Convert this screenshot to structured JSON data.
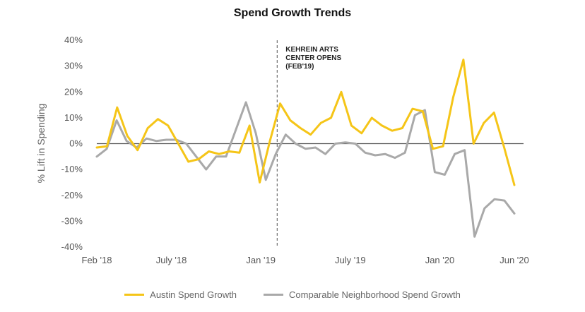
{
  "chart_data": {
    "type": "line",
    "title": "Spend Growth Trends",
    "ylabel": "% Lift in Spending",
    "xlabel": "",
    "ylim": [
      -40,
      40
    ],
    "y_ticks": [
      "40%",
      "30%",
      "20%",
      "10%",
      "0%",
      "-10%",
      "-20%",
      "-30%",
      "-40%"
    ],
    "x_tick_labels": [
      {
        "label": "Feb '18",
        "index": 0
      },
      {
        "label": "July '18",
        "index": 10
      },
      {
        "label": "Jan '19",
        "index": 22
      },
      {
        "label": "July '19",
        "index": 34
      },
      {
        "label": "Jan '20",
        "index": 46
      },
      {
        "label": "Jun '20",
        "index": 56
      }
    ],
    "annotation": {
      "lines": [
        "KEHREIN ARTS",
        "CENTER OPENS",
        "(FEB'19)"
      ],
      "at_index": 24
    },
    "grid": false,
    "legend_position": "bottom",
    "series": [
      {
        "name": "Austin Spend Growth",
        "color": "#F5C518",
        "values": [
          -1.5,
          -1,
          14,
          3,
          -2.5,
          6,
          9.5,
          7,
          0,
          -7,
          -6,
          -3,
          -4,
          -3,
          -3.5,
          7,
          -15,
          1,
          15.5,
          9,
          6,
          3.5,
          8,
          10,
          20,
          7,
          4,
          10,
          7,
          5,
          6,
          13.5,
          12.5,
          -2,
          -1,
          18,
          32.5,
          0,
          8,
          12,
          -1.5,
          -16
        ]
      },
      {
        "name": "Comparable Neighborhood Spend Growth",
        "color": "#A9A9A9",
        "values": [
          -5,
          -2,
          9,
          1,
          -1.5,
          2,
          1,
          1.5,
          1.5,
          0,
          -5,
          -10,
          -5,
          -5,
          5.5,
          16,
          4,
          -14,
          -4,
          3.5,
          0,
          -2,
          -1.5,
          -4,
          0,
          0.5,
          0,
          -3.5,
          -4.5,
          -4,
          -5.5,
          -3.5,
          11,
          13,
          -11,
          -12,
          -4,
          -2.5,
          -36,
          -25,
          -21.5,
          -22,
          -27
        ]
      }
    ]
  }
}
